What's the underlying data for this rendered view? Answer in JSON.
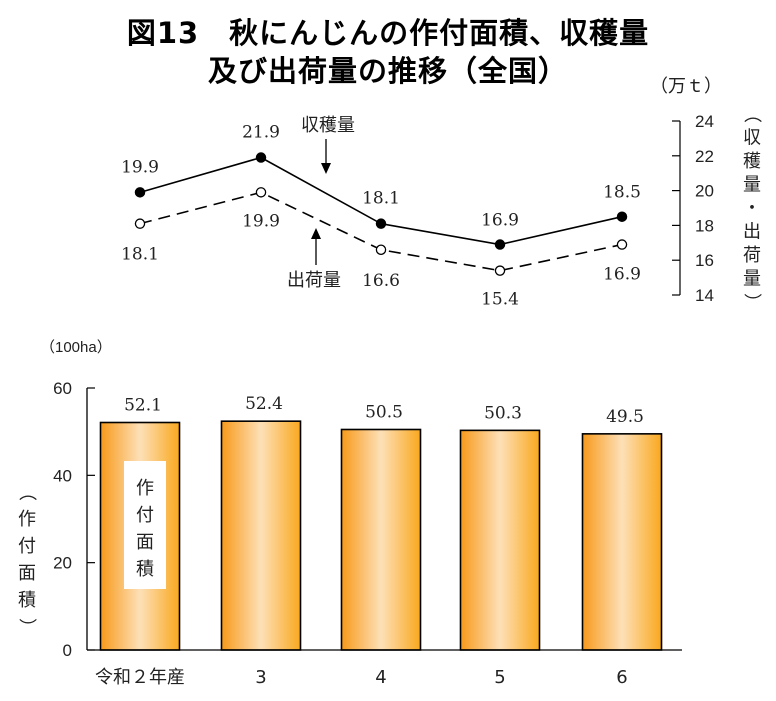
{
  "title": {
    "line1": "図13　秋にんじんの作付面積、収穫量",
    "line2": "及び出荷量の推移（全国）"
  },
  "chart_data": [
    {
      "type": "line",
      "categories": [
        "令和２年産",
        "3",
        "4",
        "5",
        "6"
      ],
      "series": [
        {
          "name": "収穫量",
          "values": [
            19.9,
            21.9,
            18.1,
            16.9,
            18.5
          ],
          "style": "solid",
          "marker": "filled"
        },
        {
          "name": "出荷量",
          "values": [
            18.1,
            19.9,
            16.6,
            15.4,
            16.9
          ],
          "style": "dashed",
          "marker": "open"
        }
      ],
      "unit": "（万ｔ）",
      "ylabel": "（収穫量・出荷量）",
      "yticks": [
        14,
        16,
        18,
        20,
        22,
        24
      ],
      "ylim": [
        14,
        24
      ],
      "axis_side": "right",
      "grid": false
    },
    {
      "type": "bar",
      "categories": [
        "令和２年産",
        "3",
        "4",
        "5",
        "6"
      ],
      "values": [
        52.1,
        52.4,
        50.5,
        50.3,
        49.5
      ],
      "series_name": "作付面積",
      "unit": "（100ha）",
      "ylabel": "（作付面積）",
      "yticks": [
        0,
        20,
        40,
        60
      ],
      "ylim": [
        0,
        60
      ],
      "axis_side": "left",
      "grid": false,
      "bar_color": "#f7a21b"
    }
  ]
}
